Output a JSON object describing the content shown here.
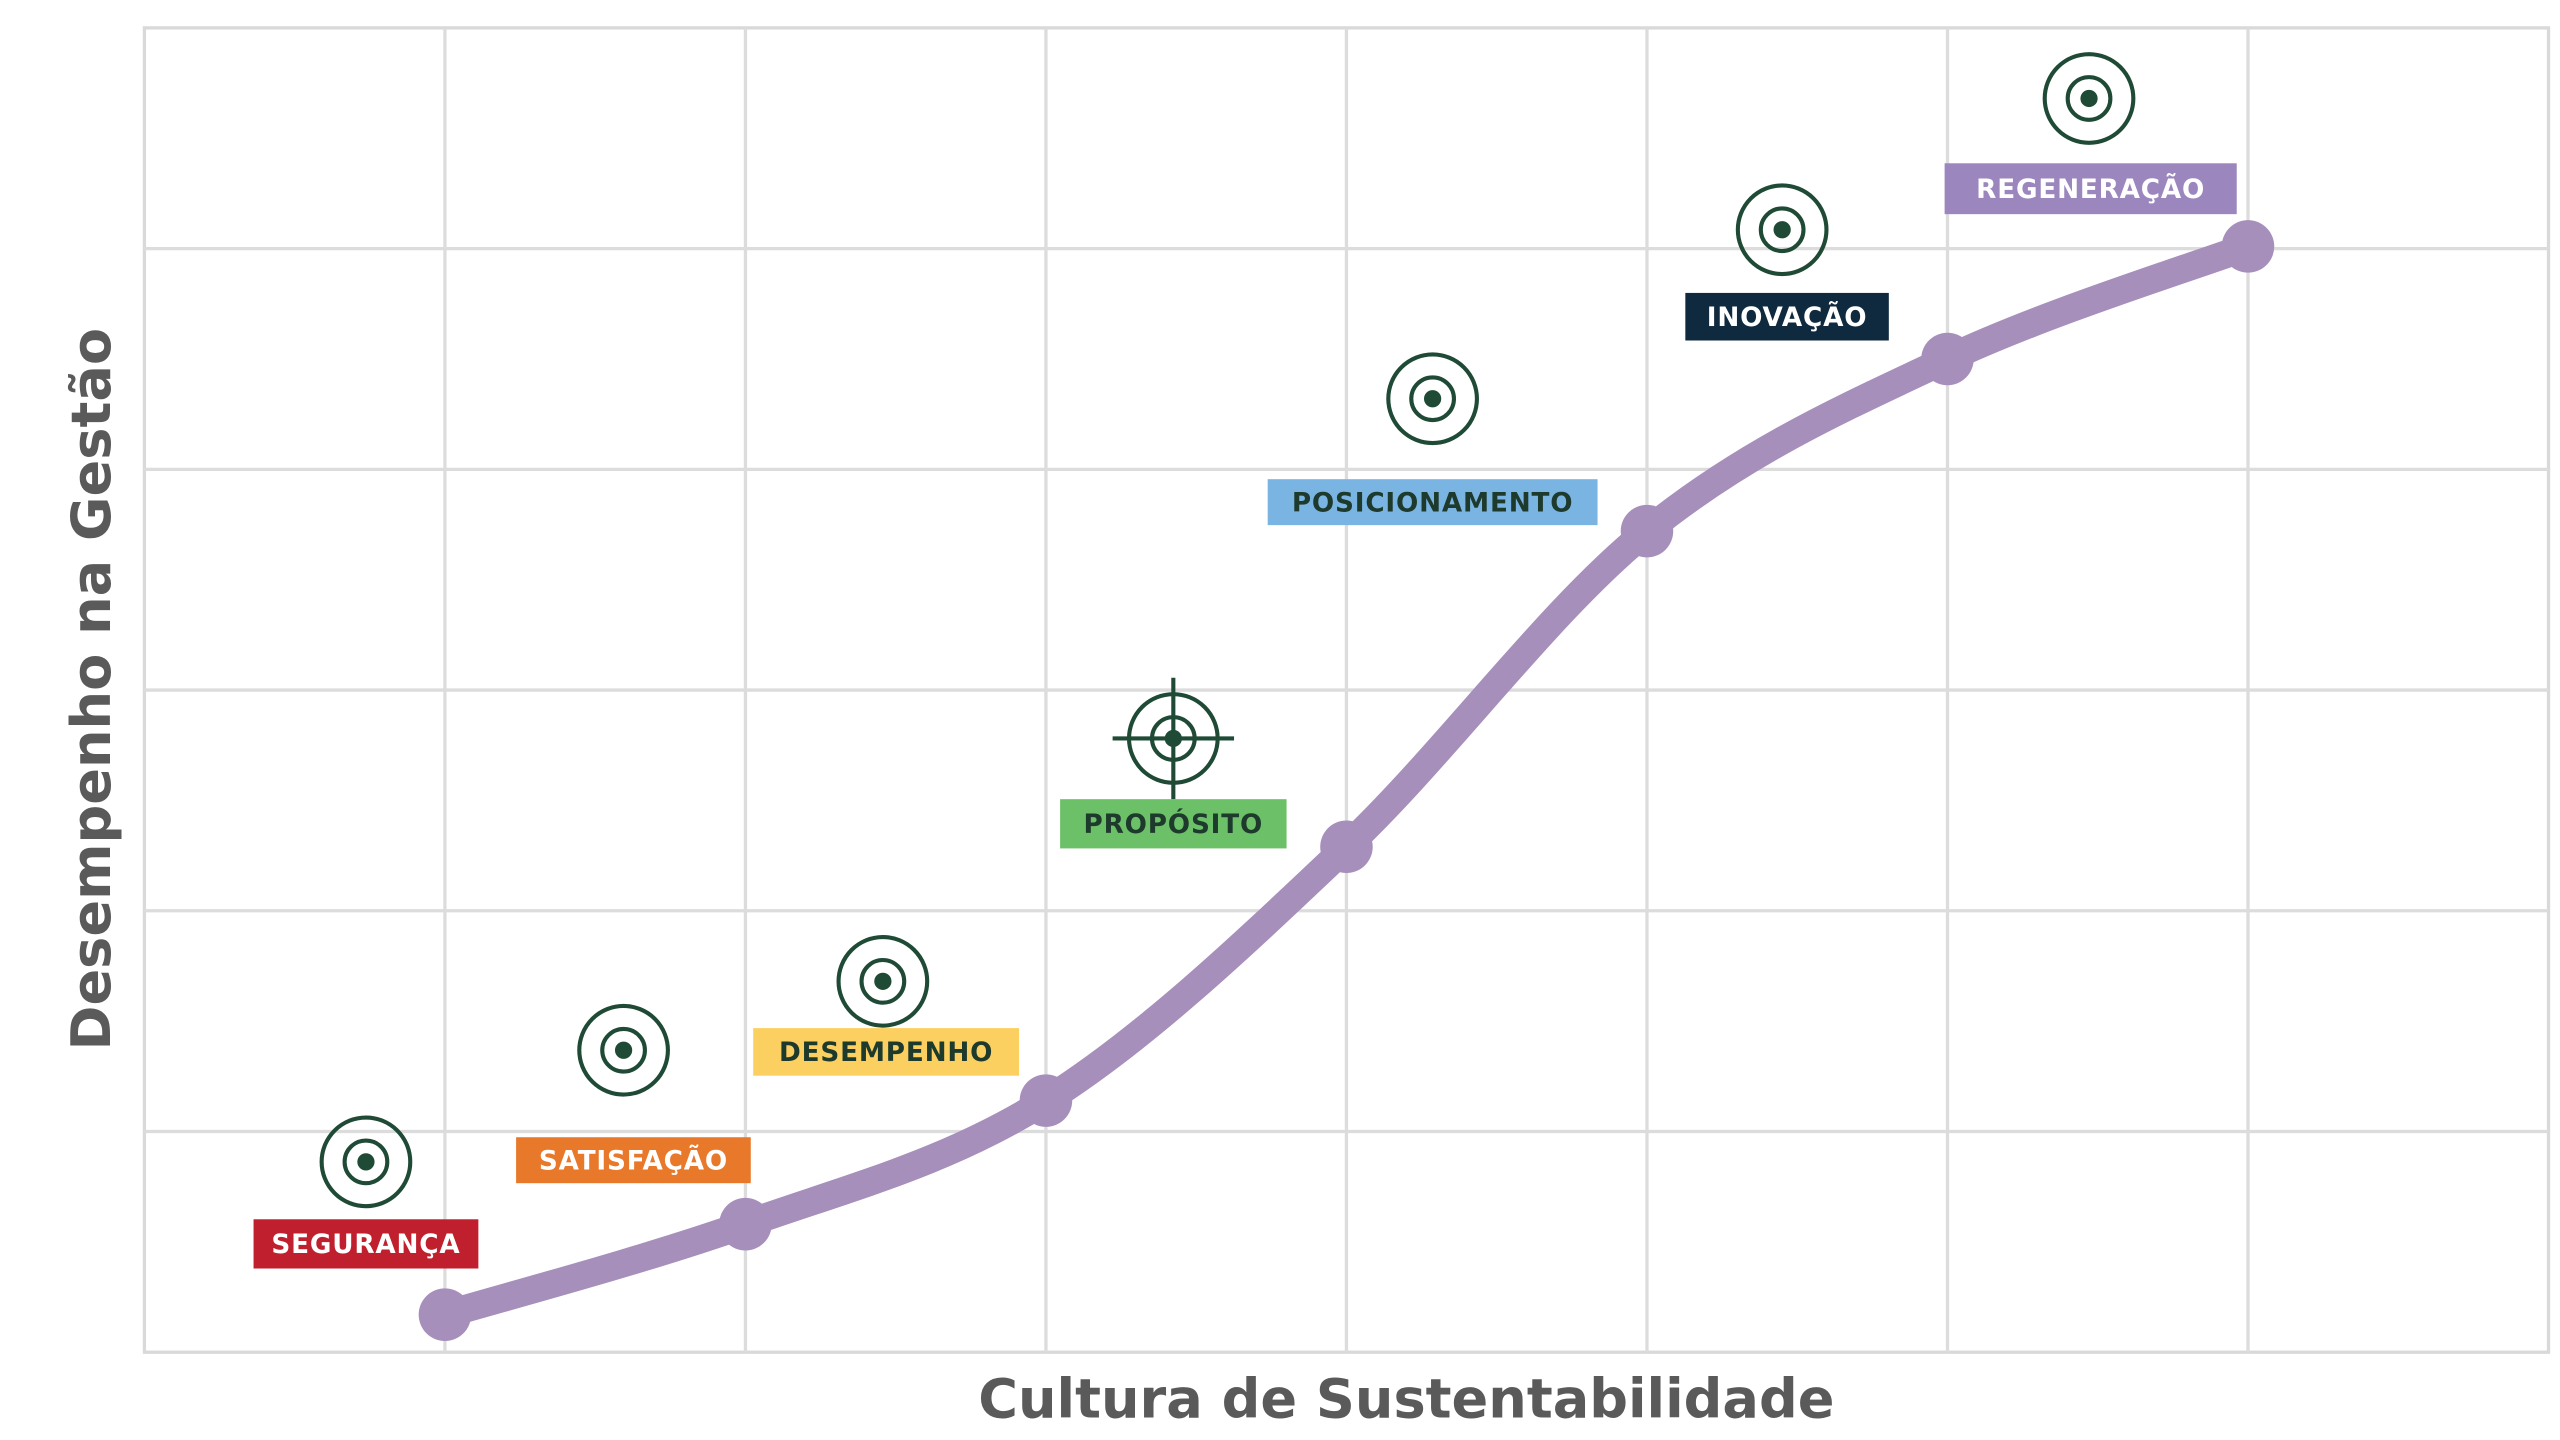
{
  "chart_data": {
    "type": "line",
    "x_label": "Cultura de Sustentabilidade",
    "y_label": "Desempenho na Gestão",
    "x": [
      1,
      2,
      3,
      4,
      5,
      6,
      7
    ],
    "series": [
      {
        "color": "#a68fbb",
        "values": [
          0.17,
          0.58,
          1.14,
          2.29,
          3.72,
          4.5,
          5.01
        ]
      }
    ],
    "xlim": [
      0,
      8
    ],
    "xticks": [
      1,
      2,
      3,
      4,
      5,
      6,
      7
    ],
    "ylim": [
      0,
      6
    ],
    "yticks": [
      1,
      2,
      3,
      4,
      5
    ],
    "grid": true,
    "annotations": [
      {
        "text": "SEGURANÇA",
        "color": "#c0202e",
        "text_color": "#ffffff"
      },
      {
        "text": "SATISFAÇÃO",
        "color": "#e8782a",
        "text_color": "#ffffff"
      },
      {
        "text": "DESEMPENHO",
        "color": "#fcd060",
        "text_color": "#1d3a2c"
      },
      {
        "text": "PROPÓSITO",
        "color": "#6cc068",
        "text_color": "#1d3a2c"
      },
      {
        "text": "POSICIONAMENTO",
        "color": "#7ab4e3",
        "text_color": "#1d3a2c"
      },
      {
        "text": "INOVAÇÃO",
        "color": "#0f2a3f",
        "text_color": "#ffffff"
      },
      {
        "text": "REGENERAÇÃO",
        "color": "#9b87bd",
        "text_color": "#ffffff"
      }
    ]
  }
}
